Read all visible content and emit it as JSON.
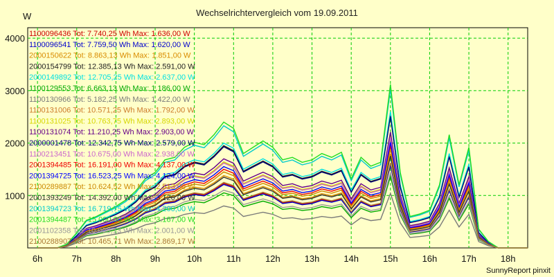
{
  "chart_data": {
    "type": "line",
    "title": "Wechselrichtervergleich vom 19.09.2011",
    "ylabel": "W",
    "xlabel": "",
    "footer": "SunnyReport pinxit",
    "ylim": [
      0,
      4200
    ],
    "xlim": [
      5.75,
      18.5
    ],
    "yticks": [
      "1000",
      "2000",
      "3000",
      "4000"
    ],
    "xticks": [
      "6h",
      "7h",
      "8h",
      "9h",
      "10h",
      "11h",
      "12h",
      "13h",
      "14h",
      "15h",
      "16h",
      "17h",
      "18h"
    ],
    "grid": true,
    "legend_position": "top-left",
    "x": [
      6.0,
      6.25,
      6.5,
      6.75,
      7.0,
      7.25,
      7.5,
      7.75,
      8.0,
      8.25,
      8.5,
      8.75,
      9.0,
      9.25,
      9.5,
      9.75,
      10.0,
      10.25,
      10.5,
      10.75,
      11.0,
      11.25,
      11.5,
      11.75,
      12.0,
      12.25,
      12.5,
      12.75,
      13.0,
      13.25,
      13.5,
      13.75,
      14.0,
      14.25,
      14.5,
      14.75,
      15.0,
      15.25,
      15.5,
      15.75,
      16.0,
      16.25,
      16.5,
      16.75,
      17.0,
      17.25,
      17.5,
      17.75,
      18.0,
      18.25,
      18.5
    ],
    "shape": [
      0.0,
      0.0,
      0.0,
      0.03,
      0.12,
      0.22,
      0.25,
      0.29,
      0.33,
      0.38,
      0.45,
      0.55,
      0.6,
      0.7,
      0.72,
      0.8,
      0.84,
      0.82,
      0.9,
      1.0,
      0.95,
      0.75,
      0.8,
      0.85,
      0.8,
      0.7,
      0.72,
      0.68,
      0.7,
      0.75,
      0.72,
      0.76,
      0.55,
      0.72,
      0.65,
      0.68,
      1.3,
      0.6,
      0.25,
      0.27,
      0.3,
      0.5,
      0.9,
      0.5,
      0.8,
      0.15,
      0.05,
      0.0,
      0.0,
      0.0,
      0.0
    ],
    "series": [
      {
        "name": "1100096436 Tot: 7.740,25 Wh Max: 1.636,00 W",
        "color": "#cc0000",
        "scale": 1230
      },
      {
        "name": "1100096541 Tot: 7.759,50 Wh Max: 1.620,00 W",
        "color": "#0000cc",
        "scale": 1210
      },
      {
        "name": "2000150622 Tot: 8.863,13 Wh Max: 1.851,00 W",
        "color": "#d98b00",
        "scale": 1380
      },
      {
        "name": "2000154799 Tot: 12.385,13 Wh Max: 2.591,00 W",
        "color": "#222222",
        "scale": 1950
      },
      {
        "name": "2000149892 Tot: 12.705,25 Wh Max: 2.637,00 W",
        "color": "#00e0e0",
        "scale": 2000
      },
      {
        "name": "1100129553 Tot: 6.663,13 Wh Max: 1.186,00 W",
        "color": "#00aa00",
        "scale": 1050
      },
      {
        "name": "1100130966 Tot: 5.182,25 Wh Max: 1.422,00 W",
        "color": "#7a7a7a",
        "scale": 800
      },
      {
        "name": "1100131006 Tot: 10.571,25 Wh Max: 1.792,00 W",
        "color": "#cc7a2b",
        "scale": 1620
      },
      {
        "name": "1100131025 Tot: 10.763,75 Wh Max: 2.893,00 W",
        "color": "#d6d600",
        "scale": 1640
      },
      {
        "name": "1100131074 Tot: 11.210,25 Wh Max: 2.903,00 W",
        "color": "#660088",
        "scale": 1700
      },
      {
        "name": "2000001478 Tot: 12.342,75 Wh Max: 2.579,00 W",
        "color": "#00007a",
        "scale": 1930
      },
      {
        "name": "1100213451 Tot: 10.675,00 Wh Max: 2.938,00 W",
        "color": "#cc66cc",
        "scale": 1620
      },
      {
        "name": "2001394485 Tot: 16.191,00 Wh Max: 4.137,00 W",
        "color": "#ee0000",
        "scale": 1500
      },
      {
        "name": "2001394725 Tot: 16.523,25 Wh Max: 4.124,00 W",
        "color": "#0000ff",
        "scale": 1550
      },
      {
        "name": "2100289887 Tot: 10.624,52 Wh Max: 2.513,00 W",
        "color": "#cc8800",
        "scale": 1450
      },
      {
        "name": "2001393249 Tot: 14.392,00 Wh Max: 3.126,00 W",
        "color": "#333333",
        "scale": 1350
      },
      {
        "name": "2001394723 Tot: 16.719,75 Wh Max: 4.200,00 W",
        "color": "#00cccc",
        "scale": 2330
      },
      {
        "name": "2001394487 Tot: 15.000,00 Wh Max: 3.167,00 W",
        "color": "#22dd22",
        "scale": 2400
      },
      {
        "name": "2001102358 Tot: 10.000,13 Wh Max: 2.001,00 W",
        "color": "#999999",
        "scale": 1100
      },
      {
        "name": "2100288907 Tot: 10.465,71 Wh Max: 2.869,17 W",
        "color": "#aa7733",
        "scale": 1250
      }
    ]
  }
}
